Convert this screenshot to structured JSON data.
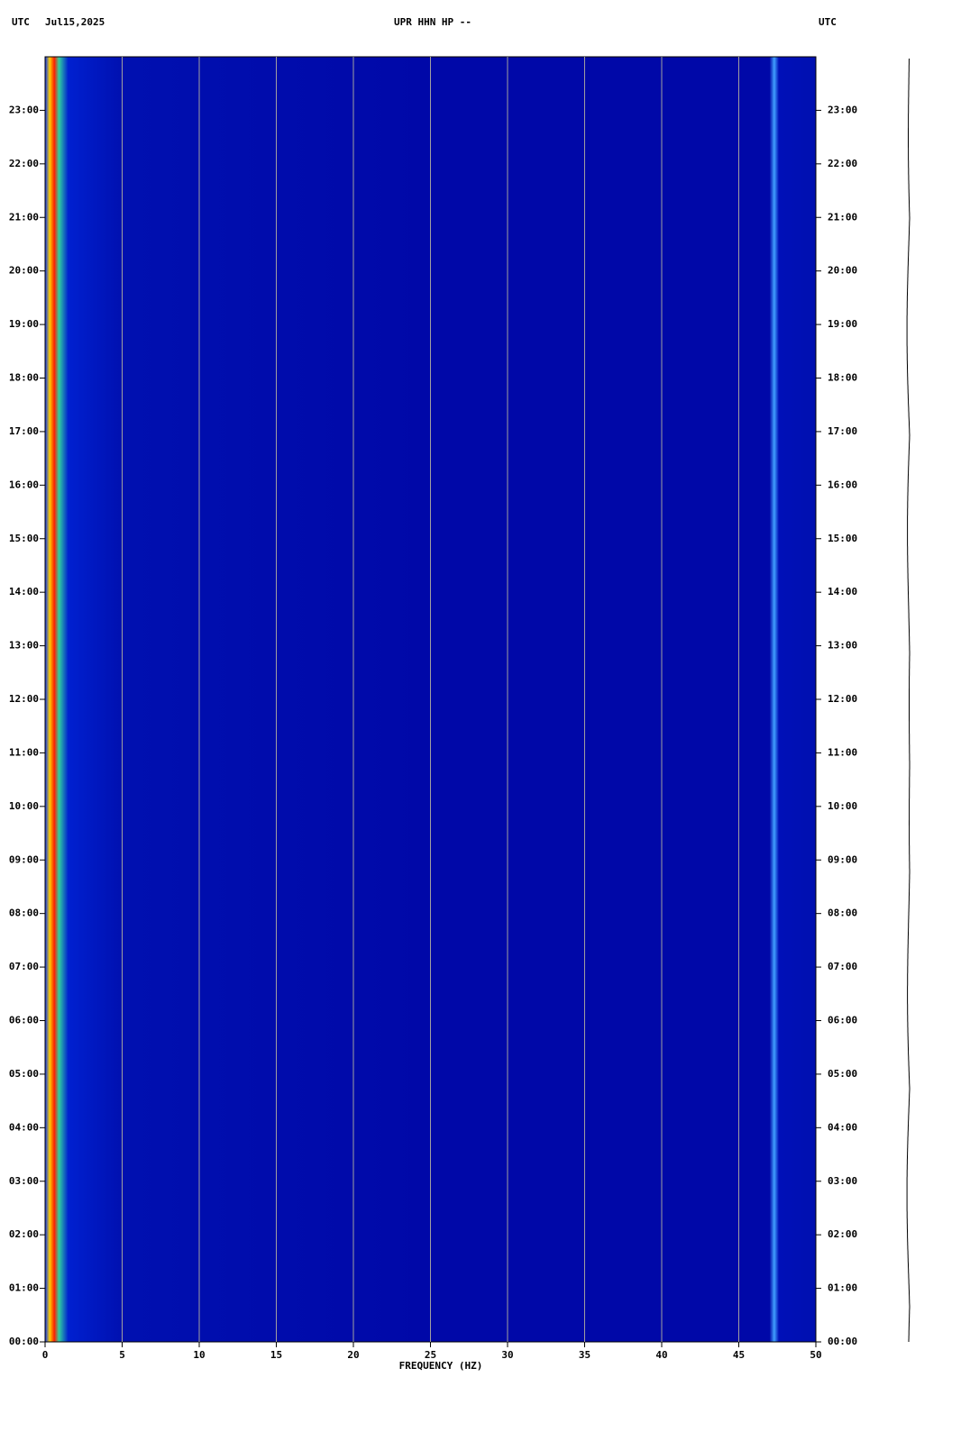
{
  "chart_data": {
    "type": "spectrogram",
    "time_zone_left": "UTC",
    "date": "Jul15,2025",
    "title": "UPR HHN HP --",
    "time_zone_right": "UTC",
    "xlabel": "FREQUENCY (HZ)",
    "xlim": [
      0,
      50
    ],
    "xticks": [
      0,
      5,
      10,
      15,
      20,
      25,
      30,
      35,
      40,
      45,
      50
    ],
    "ylim": [
      0,
      24
    ],
    "yticks": [
      {
        "value": 0,
        "label": "00:00"
      },
      {
        "value": 1,
        "label": "01:00"
      },
      {
        "value": 2,
        "label": "02:00"
      },
      {
        "value": 3,
        "label": "03:00"
      },
      {
        "value": 4,
        "label": "04:00"
      },
      {
        "value": 5,
        "label": "05:00"
      },
      {
        "value": 6,
        "label": "06:00"
      },
      {
        "value": 7,
        "label": "07:00"
      },
      {
        "value": 8,
        "label": "08:00"
      },
      {
        "value": 9,
        "label": "09:00"
      },
      {
        "value": 10,
        "label": "10:00"
      },
      {
        "value": 11,
        "label": "11:00"
      },
      {
        "value": 12,
        "label": "12:00"
      },
      {
        "value": 13,
        "label": "13:00"
      },
      {
        "value": 14,
        "label": "14:00"
      },
      {
        "value": 15,
        "label": "15:00"
      },
      {
        "value": 16,
        "label": "16:00"
      },
      {
        "value": 17,
        "label": "17:00"
      },
      {
        "value": 18,
        "label": "18:00"
      },
      {
        "value": 19,
        "label": "19:00"
      },
      {
        "value": 20,
        "label": "20:00"
      },
      {
        "value": 21,
        "label": "21:00"
      },
      {
        "value": 22,
        "label": "22:00"
      },
      {
        "value": 23,
        "label": "23:00"
      }
    ],
    "grid": true
  }
}
